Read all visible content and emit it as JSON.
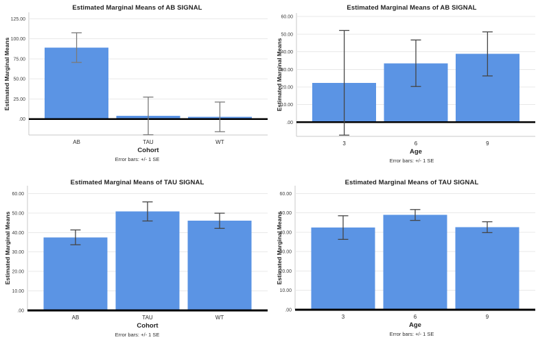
{
  "figure": {
    "background": "#ffffff"
  },
  "styles": {
    "bar_color": "#5b94e4",
    "grid_color": "#e8e8e8",
    "frame_color": "#c9c9c9",
    "zero_line_color": "#000000",
    "title_text_color": "#1f1f1f",
    "tick_text_color": "#3d3d3d"
  },
  "chart_data": [
    {
      "id": "ab-signal-by-cohort",
      "type": "bar",
      "title": "Estimated Marginal Means of AB SIGNAL",
      "xlabel": "Cohort",
      "ylabel": "Estimated Marginal Means",
      "footnote": "Error bars: +/- 1 SE",
      "categories": [
        "AB",
        "TAU",
        "WT"
      ],
      "values": [
        89.0,
        3.8,
        2.6
      ],
      "standard_errors": [
        18.5,
        23.5,
        18.5
      ],
      "yticks": [
        0,
        25,
        50,
        75,
        100,
        125
      ],
      "ytick_labels": [
        ".00",
        "25.00",
        "50.00",
        "75.00",
        "100.00",
        "125.00"
      ],
      "ylim": [
        -20,
        133
      ],
      "grid": true,
      "legend": "none",
      "bar_color": "#5b94e4",
      "error_color": "#7a7a7a"
    },
    {
      "id": "ab-signal-by-age",
      "type": "bar",
      "title": "Estimated Marginal Means of AB SIGNAL",
      "xlabel": "Age",
      "ylabel": "Estimated Marginal Means",
      "footnote": "Error bars: +/- 1 SE",
      "categories": [
        "3",
        "6",
        "9"
      ],
      "values": [
        22.4,
        33.5,
        38.8
      ],
      "standard_errors": [
        29.7,
        13.2,
        12.5
      ],
      "yticks": [
        0,
        10,
        20,
        30,
        40,
        50,
        60
      ],
      "ytick_labels": [
        ".00",
        "10.00",
        "20.00",
        "30.00",
        "40.00",
        "50.00",
        "60.00"
      ],
      "ylim": [
        -8,
        62
      ],
      "grid": true,
      "legend": "none",
      "bar_color": "#5b94e4",
      "error_color": "#454545"
    },
    {
      "id": "tau-signal-by-cohort",
      "type": "bar",
      "title": "Estimated Marginal Means of TAU SIGNAL",
      "xlabel": "Cohort",
      "ylabel": "Estimated Marginal Means",
      "footnote": "Error bars: +/- 1 SE",
      "categories": [
        "AB",
        "TAU",
        "WT"
      ],
      "values": [
        37.5,
        50.8,
        46.0
      ],
      "standard_errors": [
        3.8,
        4.9,
        3.9
      ],
      "yticks": [
        0,
        10,
        20,
        30,
        40,
        50,
        60
      ],
      "ytick_labels": [
        ".00",
        "10.00",
        "20.00",
        "30.00",
        "40.00",
        "50.00",
        "60.00"
      ],
      "ylim": [
        0,
        64
      ],
      "grid": true,
      "legend": "none",
      "bar_color": "#5b94e4",
      "error_color": "#454545"
    },
    {
      "id": "tau-signal-by-age",
      "type": "bar",
      "title": "Estimated Marginal Means of TAU SIGNAL",
      "xlabel": "Age",
      "ylabel": "Estimated Marginal Means",
      "footnote": "Error bars: +/- 1 SE",
      "categories": [
        "3",
        "6",
        "9"
      ],
      "values": [
        42.4,
        48.9,
        42.6
      ],
      "standard_errors": [
        6.1,
        2.8,
        2.8
      ],
      "yticks": [
        0,
        10,
        20,
        30,
        40,
        50,
        60
      ],
      "ytick_labels": [
        ".00",
        "10.00",
        "20.00",
        "30.00",
        "40.00",
        "50.00",
        "60.00"
      ],
      "ylim": [
        0,
        64
      ],
      "grid": true,
      "legend": "none",
      "bar_color": "#5b94e4",
      "error_color": "#454545"
    }
  ]
}
